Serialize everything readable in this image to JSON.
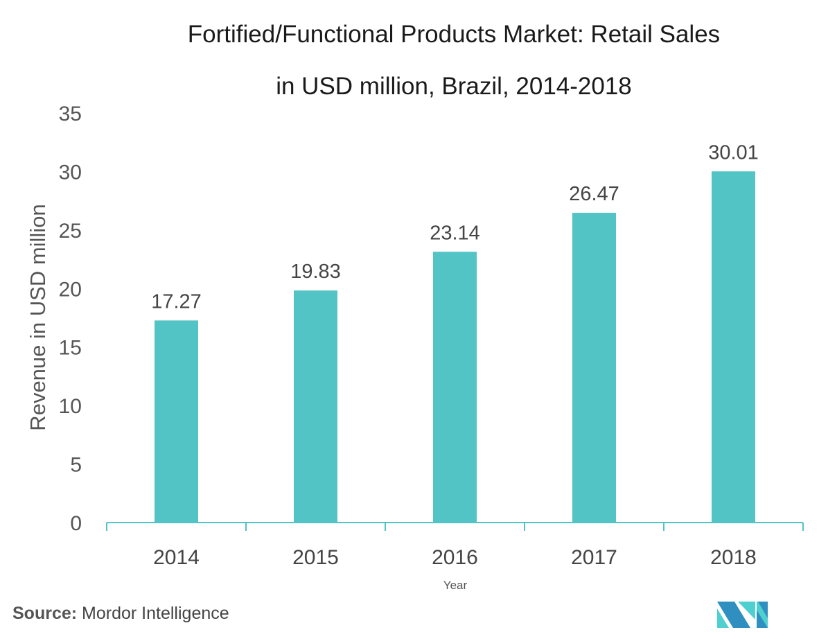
{
  "chart_data": {
    "type": "bar",
    "title": "Fortified/Functional Products Market: Retail Sales in USD million, Brazil, 2014-2018",
    "title_lines": [
      "Fortified/Functional Products Market: Retail Sales",
      "in USD million, Brazil, 2014-2018"
    ],
    "categories": [
      "2014",
      "2015",
      "2016",
      "2017",
      "2018"
    ],
    "values": [
      17.27,
      19.83,
      23.14,
      26.47,
      30.01
    ],
    "data_labels": [
      "17.27",
      "19.83",
      "23.14",
      "26.47",
      "30.01"
    ],
    "xlabel": "Year",
    "ylabel": "Revenue in USD million",
    "ylim": [
      0,
      35
    ],
    "yticks": [
      "0",
      "5",
      "10",
      "15",
      "20",
      "25",
      "30",
      "35"
    ],
    "grid": false,
    "bar_color": "#52c4c6"
  },
  "source": {
    "label": "Source:",
    "text": "Mordor Intelligence"
  },
  "logo": {
    "text": "Mordor Intelligence",
    "colors": [
      "#2e8fc0",
      "#4ecfd0"
    ]
  }
}
